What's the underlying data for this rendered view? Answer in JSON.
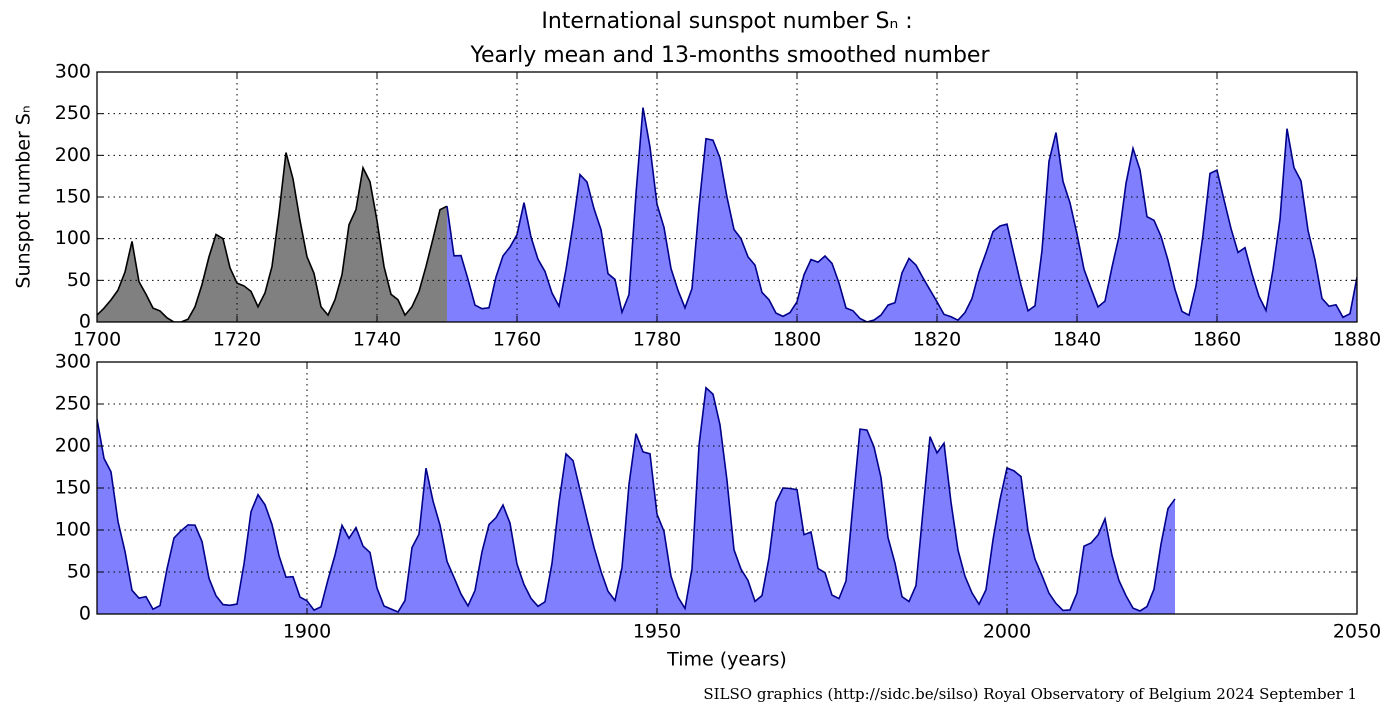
{
  "title": [
    "International sunspot number Sₙ :",
    "Yearly mean and 13-months smoothed number"
  ],
  "footer": "SILSO graphics (http://sidc.be/silso)  Royal Observatory of Belgium  2024 September 1",
  "chart_data": [
    {
      "type": "area",
      "ylabel": "Sunspot number Sₙ",
      "xlim": [
        1700,
        1880
      ],
      "xticks": [
        1700,
        1720,
        1740,
        1760,
        1780,
        1800,
        1820,
        1840,
        1860,
        1880
      ],
      "ylim": [
        0,
        300
      ],
      "yticks": [
        0,
        50,
        100,
        150,
        200,
        250,
        300
      ],
      "grid": true,
      "series": [
        {
          "color": "#808080",
          "line_color": "#000000",
          "x": [
            1700,
            1701,
            1702,
            1703,
            1704,
            1705,
            1706,
            1707,
            1708,
            1709,
            1710,
            1711,
            1712,
            1713,
            1714,
            1715,
            1716,
            1717,
            1718,
            1719,
            1720,
            1721,
            1722,
            1723,
            1724,
            1725,
            1726,
            1727,
            1728,
            1729,
            1730,
            1731,
            1732,
            1733,
            1734,
            1735,
            1736,
            1737,
            1738,
            1739,
            1740,
            1741,
            1742,
            1743,
            1744,
            1745,
            1746,
            1747,
            1748,
            1749,
            1750
          ],
          "values": [
            8.3,
            16.6,
            26.6,
            38.3,
            60,
            96.7,
            48.3,
            33.3,
            16.7,
            13.3,
            5,
            0,
            0,
            3.3,
            18.3,
            45,
            78.3,
            105,
            100,
            65,
            46.7,
            43.3,
            36.7,
            18.3,
            35,
            66.7,
            130,
            203.3,
            171.7,
            121.7,
            78.3,
            58.3,
            18.3,
            8.3,
            26.7,
            56.7,
            116.7,
            135,
            185,
            168.3,
            121.7,
            66.7,
            33.3,
            26.7,
            8.3,
            18.3,
            36.7,
            66.7,
            100,
            134.8,
            139
          ]
        },
        {
          "color": "#8080ff",
          "line_color": "#00008b",
          "x": [
            1750,
            1751,
            1752,
            1753,
            1754,
            1755,
            1756,
            1757,
            1758,
            1759,
            1760,
            1761,
            1762,
            1763,
            1764,
            1765,
            1766,
            1767,
            1768,
            1769,
            1770,
            1771,
            1772,
            1773,
            1774,
            1775,
            1776,
            1777,
            1778,
            1779,
            1780,
            1781,
            1782,
            1783,
            1784,
            1785,
            1786,
            1787,
            1788,
            1789,
            1790,
            1791,
            1792,
            1793,
            1794,
            1795,
            1796,
            1797,
            1798,
            1799,
            1800,
            1801,
            1802,
            1803,
            1804,
            1805,
            1806,
            1807,
            1808,
            1809,
            1810,
            1811,
            1812,
            1813,
            1814,
            1815,
            1816,
            1817,
            1818,
            1819,
            1820,
            1821,
            1822,
            1823,
            1824,
            1825,
            1826,
            1827,
            1828,
            1829,
            1830,
            1831,
            1832,
            1833,
            1834,
            1835,
            1836,
            1837,
            1838,
            1839,
            1840,
            1841,
            1842,
            1843,
            1844,
            1845,
            1846,
            1847,
            1848,
            1849,
            1850,
            1851,
            1852,
            1853,
            1854,
            1855,
            1856,
            1857,
            1858,
            1859,
            1860,
            1861,
            1862,
            1863,
            1864,
            1865,
            1866,
            1867,
            1868,
            1869,
            1870,
            1871,
            1872,
            1873,
            1874,
            1875,
            1876,
            1877,
            1878,
            1879,
            1880
          ],
          "values": [
            139.0,
            79.5,
            79.7,
            51.2,
            20.3,
            16.0,
            17.0,
            54.0,
            79.3,
            90.0,
            104.8,
            143.2,
            102.0,
            75.2,
            60.7,
            34.8,
            19.0,
            63.0,
            116.3,
            176.8,
            168.0,
            136.0,
            110.8,
            58.0,
            51.0,
            11.7,
            33.0,
            154.2,
            257.3,
            209.8,
            141.3,
            113.5,
            64.2,
            38.0,
            17.0,
            40.2,
            138.2,
            220.0,
            218.2,
            196.8,
            149.8,
            111.0,
            100.0,
            78.2,
            68.3,
            35.5,
            26.7,
            10.7,
            6.8,
            11.3,
            24.2,
            56.7,
            75.0,
            71.8,
            79.2,
            70.3,
            46.8,
            16.8,
            13.5,
            4.2,
            0.0,
            2.3,
            8.3,
            20.3,
            23.2,
            59.0,
            76.3,
            68.3,
            52.9,
            38.5,
            24.2,
            9.2,
            6.3,
            2.2,
            11.4,
            28.2,
            59.9,
            83.0,
            108.5,
            115.2,
            117.4,
            80.8,
            44.3,
            13.4,
            19.5,
            85.8,
            192.9,
            227.3,
            168.7,
            143.0,
            105.5,
            63.3,
            40.3,
            18.1,
            25.1,
            65.8,
            102.7,
            166.3,
            208.3,
            182.5,
            126.3,
            122.0,
            102.7,
            74.1,
            39.0,
            12.7,
            8.2,
            43.4,
            104.4,
            178.3,
            182.2,
            146.6,
            112.1,
            83.5,
            89.2,
            57.8,
            30.7,
            13.9,
            62.8,
            123.6,
            232.0,
            185.3,
            169.2,
            110.1,
            74.5,
            28.3,
            18.9,
            20.7,
            5.7,
            10.0,
            53.7
          ]
        }
      ]
    },
    {
      "type": "area",
      "xlabel": "Time (years)",
      "xlim": [
        1870,
        2050
      ],
      "xticks": [
        1900,
        1950,
        2000,
        2050
      ],
      "ylim": [
        0,
        300
      ],
      "yticks": [
        0,
        50,
        100,
        150,
        200,
        250,
        300
      ],
      "grid": true,
      "series": [
        {
          "color": "#8080ff",
          "line_color": "#00008b",
          "x": [
            1870,
            1871,
            1872,
            1873,
            1874,
            1875,
            1876,
            1877,
            1878,
            1879,
            1880,
            1881,
            1882,
            1883,
            1884,
            1885,
            1886,
            1887,
            1888,
            1889,
            1890,
            1891,
            1892,
            1893,
            1894,
            1895,
            1896,
            1897,
            1898,
            1899,
            1900,
            1901,
            1902,
            1903,
            1904,
            1905,
            1906,
            1907,
            1908,
            1909,
            1910,
            1911,
            1912,
            1913,
            1914,
            1915,
            1916,
            1917,
            1918,
            1919,
            1920,
            1921,
            1922,
            1923,
            1924,
            1925,
            1926,
            1927,
            1928,
            1929,
            1930,
            1931,
            1932,
            1933,
            1934,
            1935,
            1936,
            1937,
            1938,
            1939,
            1940,
            1941,
            1942,
            1943,
            1944,
            1945,
            1946,
            1947,
            1948,
            1949,
            1950,
            1951,
            1952,
            1953,
            1954,
            1955,
            1956,
            1957,
            1958,
            1959,
            1960,
            1961,
            1962,
            1963,
            1964,
            1965,
            1966,
            1967,
            1968,
            1969,
            1970,
            1971,
            1972,
            1973,
            1974,
            1975,
            1976,
            1977,
            1978,
            1979,
            1980,
            1981,
            1982,
            1983,
            1984,
            1985,
            1986,
            1987,
            1988,
            1989,
            1990,
            1991,
            1992,
            1993,
            1994,
            1995,
            1996,
            1997,
            1998,
            1999,
            2000,
            2001,
            2002,
            2003,
            2004,
            2005,
            2006,
            2007,
            2008,
            2009,
            2010,
            2011,
            2012,
            2013,
            2014,
            2015,
            2016,
            2017,
            2018,
            2019,
            2020,
            2021,
            2022,
            2023,
            2024
          ],
          "values": [
            232.0,
            185.3,
            169.2,
            110.1,
            74.5,
            28.3,
            18.9,
            20.7,
            5.7,
            10.0,
            53.7,
            90.5,
            99.0,
            106.1,
            105.8,
            86.3,
            42.4,
            21.8,
            11.2,
            10.4,
            11.8,
            59.5,
            121.7,
            142.0,
            130.0,
            106.6,
            69.4,
            43.8,
            44.4,
            20.2,
            15.7,
            4.6,
            8.5,
            40.8,
            70.1,
            105.5,
            90.1,
            102.8,
            80.9,
            73.2,
            30.9,
            9.5,
            6.0,
            2.4,
            16.1,
            79.0,
            95.0,
            173.6,
            134.6,
            105.7,
            62.7,
            43.5,
            23.7,
            9.7,
            27.9,
            74.0,
            106.5,
            114.7,
            129.7,
            108.2,
            59.4,
            35.1,
            18.6,
            9.2,
            14.6,
            60.2,
            132.8,
            190.6,
            182.6,
            148.0,
            113.0,
            79.2,
            50.8,
            27.1,
            16.1,
            55.3,
            154.3,
            214.7,
            193.0,
            190.7,
            118.9,
            98.3,
            45.0,
            20.1,
            6.6,
            54.2,
            200.7,
            269.3,
            261.7,
            225.1,
            159.0,
            76.4,
            53.4,
            39.9,
            15.0,
            22.0,
            66.8,
            132.9,
            150.0,
            149.4,
            148.0,
            94.4,
            97.6,
            54.1,
            49.2,
            22.5,
            18.4,
            39.3,
            131.0,
            220.1,
            218.9,
            198.9,
            162.4,
            91.0,
            60.5,
            20.6,
            14.8,
            33.9,
            123.0,
            211.1,
            191.8,
            203.3,
            133.0,
            76.1,
            44.9,
            25.1,
            11.6,
            28.9,
            88.3,
            136.3,
            173.9,
            170.4,
            163.6,
            99.3,
            65.3,
            45.8,
            24.7,
            12.6,
            4.2,
            4.8,
            24.9,
            80.8,
            84.5,
            94.0,
            113.3,
            69.8,
            39.8,
            21.7,
            7.0,
            3.6,
            8.8,
            29.6,
            83.2,
            125.5,
            137
          ]
        }
      ]
    }
  ]
}
